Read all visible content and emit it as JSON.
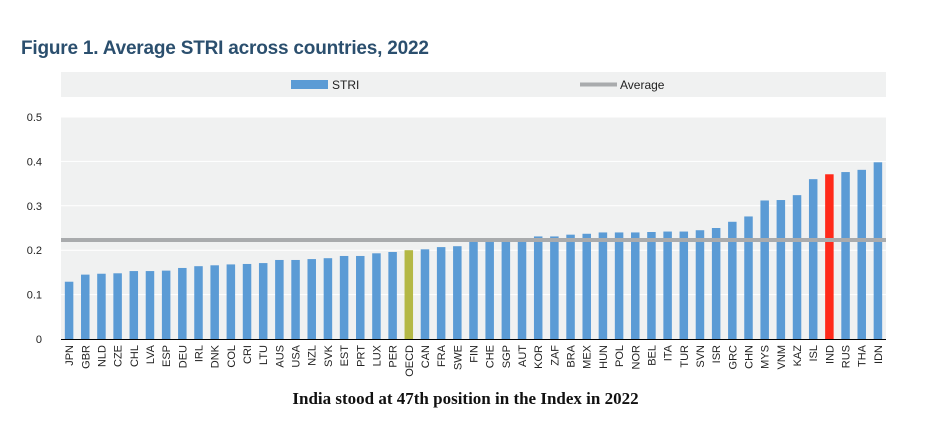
{
  "colors": {
    "bar": "#5b9bd5",
    "oecd": "#b4b845",
    "india": "#ff2a1a",
    "average_line": "#a9abad",
    "plot_bg": "#f0f1f1",
    "title": "#2b4f6e"
  },
  "caption": "India stood at 47th position in the Index in 2022",
  "chart_data": {
    "type": "bar",
    "title": "Figure 1. Average STRI across countries, 2022",
    "xlabel": "",
    "ylabel": "",
    "ylim": [
      0,
      0.5
    ],
    "yticks": [
      "0",
      "0.1",
      "0.2",
      "0.3",
      "0.4",
      "0.5"
    ],
    "legend": [
      {
        "label": "STRI",
        "kind": "bar"
      },
      {
        "label": "Average",
        "kind": "line"
      }
    ],
    "legend_position": "top",
    "average": 0.223,
    "highlight": {
      "OECD": "oecd",
      "IND": "india"
    },
    "categories": [
      "JPN",
      "GBR",
      "NLD",
      "CZE",
      "CHL",
      "LVA",
      "ESP",
      "DEU",
      "IRL",
      "DNK",
      "COL",
      "CRI",
      "LTU",
      "AUS",
      "USA",
      "NZL",
      "SVK",
      "EST",
      "PRT",
      "LUX",
      "PER",
      "OECD",
      "CAN",
      "FRA",
      "SWE",
      "FIN",
      "CHE",
      "SGP",
      "AUT",
      "KOR",
      "ZAF",
      "BRA",
      "MEX",
      "HUN",
      "POL",
      "NOR",
      "BEL",
      "ITA",
      "TUR",
      "SVN",
      "ISR",
      "GRC",
      "CHN",
      "MYS",
      "VNM",
      "KAZ",
      "ISL",
      "IND",
      "RUS",
      "THA",
      "IDN"
    ],
    "values": [
      0.129,
      0.145,
      0.147,
      0.148,
      0.153,
      0.153,
      0.154,
      0.16,
      0.164,
      0.166,
      0.168,
      0.169,
      0.171,
      0.178,
      0.178,
      0.18,
      0.182,
      0.187,
      0.187,
      0.193,
      0.196,
      0.2,
      0.202,
      0.207,
      0.209,
      0.219,
      0.221,
      0.222,
      0.225,
      0.231,
      0.231,
      0.235,
      0.237,
      0.24,
      0.24,
      0.24,
      0.241,
      0.242,
      0.242,
      0.245,
      0.25,
      0.264,
      0.276,
      0.312,
      0.313,
      0.324,
      0.36,
      0.371,
      0.376,
      0.381,
      0.398
    ]
  }
}
